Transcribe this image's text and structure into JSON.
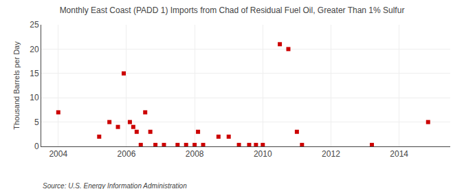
{
  "chart_data": {
    "type": "scatter",
    "title": "Monthly East Coast (PADD 1) Imports from Chad of Residual Fuel Oil, Greater Than 1% Sulfur",
    "ylabel": "Thousand Barrels per Day",
    "annotations": [
      "Source: U.S. Energy Information Administration"
    ],
    "x": [
      2004.0,
      2005.2,
      2005.5,
      2005.75,
      2005.92,
      2006.1,
      2006.2,
      2006.3,
      2006.42,
      2006.55,
      2006.7,
      2006.85,
      2007.1,
      2007.5,
      2007.75,
      2008.0,
      2008.1,
      2008.25,
      2008.7,
      2009.0,
      2009.3,
      2009.6,
      2009.8,
      2010.0,
      2010.5,
      2010.75,
      2011.0,
      2011.15,
      2013.2,
      2014.85
    ],
    "values": [
      7,
      2,
      5,
      4,
      15,
      5,
      4,
      3,
      0.3,
      7,
      3,
      0.3,
      0.3,
      0.3,
      0.3,
      0.3,
      3,
      0.3,
      2,
      2,
      0.3,
      0.3,
      0.3,
      0.3,
      21,
      20,
      3,
      0.3,
      0.3,
      5
    ],
    "color": "#cc0000",
    "marker": "square",
    "xlim": [
      2003.5,
      2015.5
    ],
    "ylim": [
      0,
      25
    ],
    "xticks": [
      2004,
      2006,
      2008,
      2010,
      2012,
      2014
    ],
    "yticks": [
      0,
      5,
      10,
      15,
      20,
      25
    ],
    "grid": true
  }
}
